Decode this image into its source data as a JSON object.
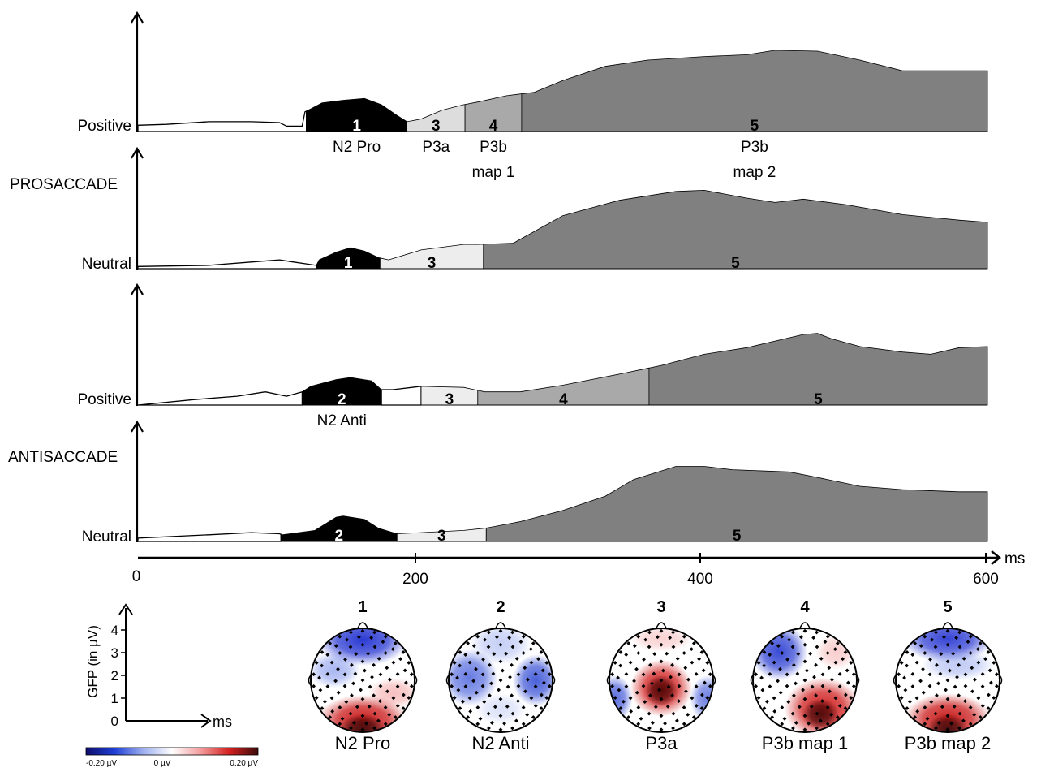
{
  "chart_data": {
    "type": "area",
    "x_unit": "ms",
    "xlim": [
      0,
      600
    ],
    "x_ticks": [
      "0",
      "200",
      "400",
      "600"
    ],
    "panel_groups": [
      {
        "label": "PROSACCADE",
        "panels": [
          0,
          1
        ]
      },
      {
        "label": "ANTISACCADE",
        "panels": [
          2,
          3
        ]
      }
    ],
    "panels": [
      {
        "label": "Positive",
        "gfp_relative": [
          [
            0,
            0.07
          ],
          [
            20,
            0.08
          ],
          [
            50,
            0.11
          ],
          [
            80,
            0.11
          ],
          [
            100,
            0.1
          ],
          [
            105,
            0.06
          ],
          [
            116,
            0.06
          ],
          [
            118,
            0.22
          ],
          [
            130,
            0.32
          ],
          [
            145,
            0.35
          ],
          [
            160,
            0.37
          ],
          [
            172,
            0.3
          ],
          [
            183,
            0.18
          ],
          [
            190,
            0.11
          ],
          [
            200,
            0.14
          ],
          [
            215,
            0.24
          ],
          [
            230,
            0.3
          ],
          [
            240,
            0.33
          ],
          [
            260,
            0.4
          ],
          [
            280,
            0.44
          ],
          [
            300,
            0.57
          ],
          [
            330,
            0.73
          ],
          [
            360,
            0.8
          ],
          [
            400,
            0.84
          ],
          [
            430,
            0.86
          ],
          [
            450,
            0.91
          ],
          [
            480,
            0.9
          ],
          [
            510,
            0.8
          ],
          [
            540,
            0.68
          ],
          [
            560,
            0.68
          ],
          [
            600,
            0.68
          ]
        ],
        "segments": [
          {
            "start": 0,
            "end": 119,
            "map": null,
            "fill": "#ffffff"
          },
          {
            "start": 119,
            "end": 190,
            "map": "1",
            "fill": "#000000",
            "label": "N2 Pro"
          },
          {
            "start": 190,
            "end": 231,
            "map": "3",
            "fill": "#dddddd",
            "label": "P3a"
          },
          {
            "start": 231,
            "end": 271,
            "map": "4",
            "fill": "#a9a9a9",
            "label": "P3b map 1"
          },
          {
            "start": 271,
            "end": 600,
            "map": "5",
            "fill": "#808080",
            "label": "P3b map 2"
          }
        ]
      },
      {
        "label": "Neutral",
        "gfp_relative": [
          [
            0,
            0.02
          ],
          [
            50,
            0.03
          ],
          [
            80,
            0.06
          ],
          [
            100,
            0.08
          ],
          [
            110,
            0.06
          ],
          [
            126,
            0.03
          ],
          [
            128,
            0.08
          ],
          [
            140,
            0.15
          ],
          [
            150,
            0.19
          ],
          [
            160,
            0.16
          ],
          [
            170,
            0.1
          ],
          [
            177,
            0.08
          ],
          [
            200,
            0.17
          ],
          [
            230,
            0.22
          ],
          [
            240,
            0.22
          ],
          [
            265,
            0.23
          ],
          [
            300,
            0.48
          ],
          [
            340,
            0.62
          ],
          [
            380,
            0.7
          ],
          [
            400,
            0.71
          ],
          [
            430,
            0.64
          ],
          [
            450,
            0.6
          ],
          [
            470,
            0.63
          ],
          [
            500,
            0.58
          ],
          [
            540,
            0.49
          ],
          [
            580,
            0.44
          ],
          [
            600,
            0.42
          ]
        ],
        "segments": [
          {
            "start": 0,
            "end": 126,
            "map": null,
            "fill": "#ffffff"
          },
          {
            "start": 126,
            "end": 171,
            "map": "1",
            "fill": "#000000"
          },
          {
            "start": 171,
            "end": 244,
            "map": "3",
            "fill": "#ededed"
          },
          {
            "start": 244,
            "end": 600,
            "map": "5",
            "fill": "#808080"
          }
        ]
      },
      {
        "label": "Positive",
        "gfp_relative": [
          [
            0,
            0.0
          ],
          [
            40,
            0.05
          ],
          [
            70,
            0.08
          ],
          [
            90,
            0.12
          ],
          [
            105,
            0.08
          ],
          [
            116,
            0.12
          ],
          [
            122,
            0.17
          ],
          [
            140,
            0.23
          ],
          [
            150,
            0.25
          ],
          [
            165,
            0.22
          ],
          [
            172,
            0.14
          ],
          [
            180,
            0.14
          ],
          [
            200,
            0.17
          ],
          [
            230,
            0.16
          ],
          [
            245,
            0.12
          ],
          [
            270,
            0.12
          ],
          [
            300,
            0.18
          ],
          [
            340,
            0.28
          ],
          [
            370,
            0.36
          ],
          [
            400,
            0.46
          ],
          [
            430,
            0.52
          ],
          [
            450,
            0.58
          ],
          [
            470,
            0.64
          ],
          [
            480,
            0.65
          ],
          [
            490,
            0.6
          ],
          [
            510,
            0.53
          ],
          [
            540,
            0.48
          ],
          [
            560,
            0.46
          ],
          [
            580,
            0.52
          ],
          [
            600,
            0.53
          ]
        ],
        "segments": [
          {
            "start": 0,
            "end": 116,
            "map": null,
            "fill": "#ffffff"
          },
          {
            "start": 116,
            "end": 172,
            "map": "2",
            "fill": "#000000",
            "label": "N2 Anti"
          },
          {
            "start": 172,
            "end": 200,
            "map": null,
            "fill": "#ffffff"
          },
          {
            "start": 200,
            "end": 240,
            "map": "3",
            "fill": "#ededed"
          },
          {
            "start": 240,
            "end": 361,
            "map": "4",
            "fill": "#a9a9a9"
          },
          {
            "start": 361,
            "end": 600,
            "map": "5",
            "fill": "#808080"
          }
        ]
      },
      {
        "label": "Neutral",
        "gfp_relative": [
          [
            0,
            0.03
          ],
          [
            50,
            0.06
          ],
          [
            80,
            0.08
          ],
          [
            100,
            0.07
          ],
          [
            102,
            0.06
          ],
          [
            125,
            0.1
          ],
          [
            140,
            0.22
          ],
          [
            145,
            0.23
          ],
          [
            160,
            0.2
          ],
          [
            170,
            0.12
          ],
          [
            183,
            0.07
          ],
          [
            200,
            0.08
          ],
          [
            230,
            0.1
          ],
          [
            245,
            0.12
          ],
          [
            270,
            0.18
          ],
          [
            300,
            0.28
          ],
          [
            330,
            0.41
          ],
          [
            350,
            0.56
          ],
          [
            380,
            0.68
          ],
          [
            400,
            0.68
          ],
          [
            420,
            0.65
          ],
          [
            460,
            0.63
          ],
          [
            480,
            0.58
          ],
          [
            510,
            0.5
          ],
          [
            540,
            0.47
          ],
          [
            580,
            0.45
          ],
          [
            600,
            0.45
          ]
        ],
        "segments": [
          {
            "start": 0,
            "end": 101,
            "map": null,
            "fill": "#ffffff"
          },
          {
            "start": 101,
            "end": 183,
            "map": "2",
            "fill": "#000000"
          },
          {
            "start": 183,
            "end": 246,
            "map": "3",
            "fill": "#ededed"
          },
          {
            "start": 246,
            "end": 600,
            "map": "5",
            "fill": "#808080"
          }
        ]
      }
    ],
    "topomaps": [
      {
        "number": "1",
        "label": "N2 Pro"
      },
      {
        "number": "2",
        "label": "N2 Anti"
      },
      {
        "number": "3",
        "label": "P3a"
      },
      {
        "number": "4",
        "label": "P3b map 1"
      },
      {
        "number": "5",
        "label": "P3b map 2"
      }
    ],
    "legend": {
      "gfp_axis_label": "GFP (in µV)",
      "gfp_ticks": [
        "0",
        "1",
        "2",
        "3",
        "4"
      ],
      "time_unit": "ms",
      "colorbar_min": "-0.20 µV",
      "colorbar_mid": "0 µV",
      "colorbar_max": "0.20 µV",
      "colorbar_colors": [
        "#0d0d6b",
        "#1f3fd6",
        "#9fb0ef",
        "#ffffff",
        "#f39c9c",
        "#d42020",
        "#3b0a0a"
      ]
    }
  }
}
